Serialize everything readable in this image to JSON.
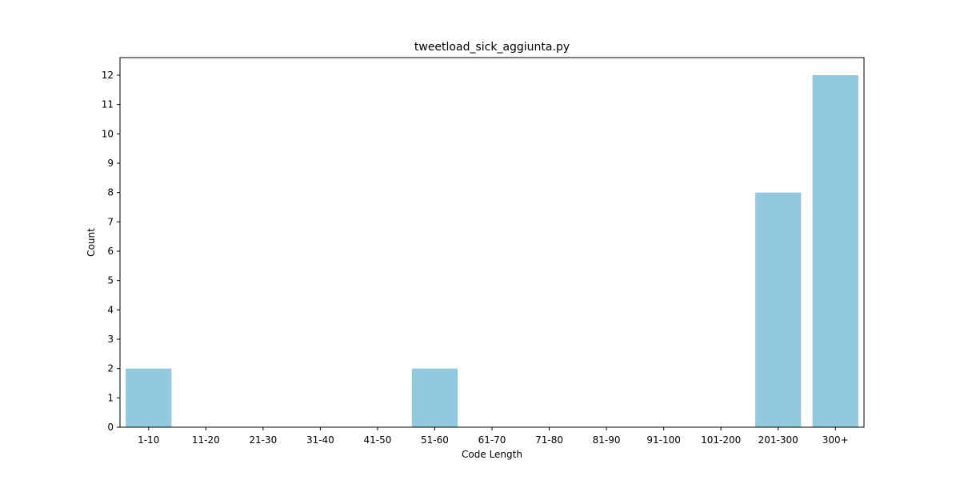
{
  "chart_data": {
    "type": "bar",
    "title": "tweetload_sick_aggiunta.py",
    "xlabel": "Code Length",
    "ylabel": "Count",
    "categories": [
      "1-10",
      "11-20",
      "21-30",
      "31-40",
      "41-50",
      "51-60",
      "61-70",
      "71-80",
      "81-90",
      "91-100",
      "101-200",
      "201-300",
      "300+"
    ],
    "values": [
      2,
      0,
      0,
      0,
      0,
      2,
      0,
      0,
      0,
      0,
      0,
      8,
      12
    ],
    "ylim": [
      0,
      12.6
    ],
    "yticks": [
      0,
      1,
      2,
      3,
      4,
      5,
      6,
      7,
      8,
      9,
      10,
      11,
      12
    ],
    "grid": false,
    "bar_color": "#92c9df"
  }
}
